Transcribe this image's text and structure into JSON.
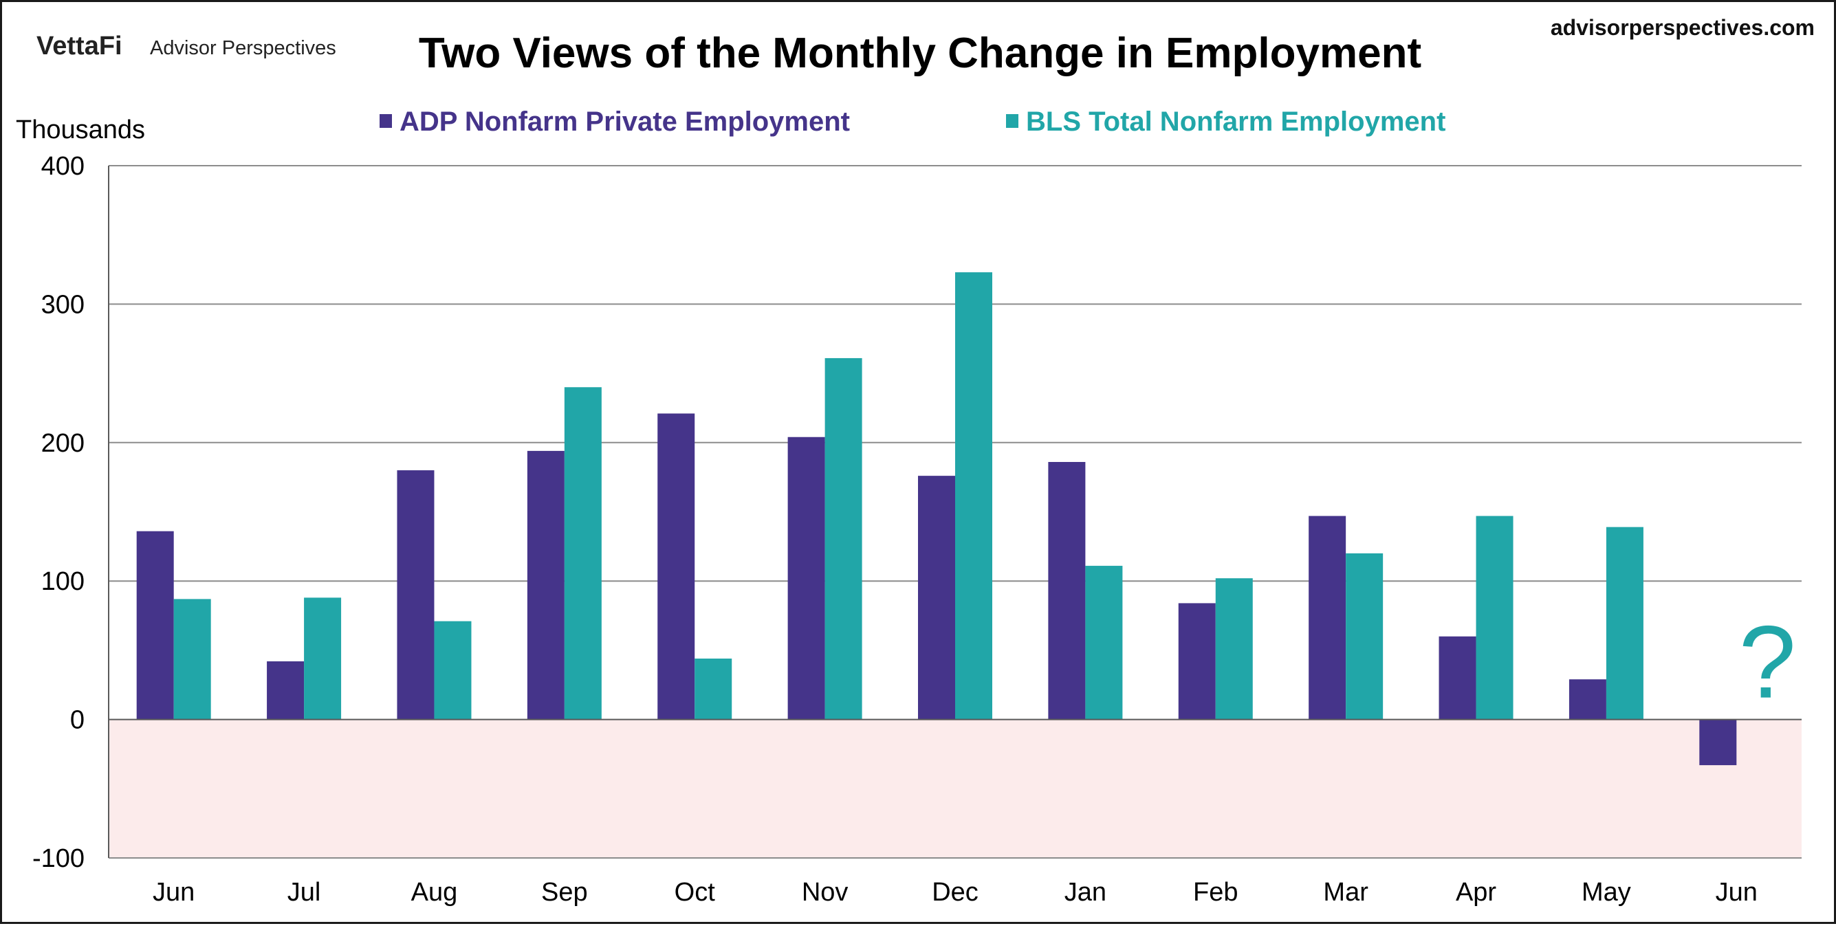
{
  "header": {
    "logo_text": "VettaFi",
    "brand_name": "Advisor Perspectives",
    "site_url": "advisorperspectives.com"
  },
  "colors": {
    "adp": "#45348a",
    "bls": "#21a6a8",
    "gridline": "#8c8c8c",
    "axis": "#595959",
    "negative_zone": "#fcebeb"
  },
  "chart_data": {
    "type": "bar",
    "title": "Two Views of the Monthly Change in Employment",
    "ylabel": "Thousands",
    "xlabel": "",
    "ylim": [
      -100,
      400
    ],
    "yticks": [
      400,
      300,
      200,
      100,
      0,
      -100
    ],
    "grid": true,
    "legend_position": "top",
    "categories": [
      "Jun",
      "Jul",
      "Aug",
      "Sep",
      "Oct",
      "Nov",
      "Dec",
      "Jan",
      "Feb",
      "Mar",
      "Apr",
      "May",
      "Jun"
    ],
    "series": [
      {
        "name": "ADP Nonfarm Private Employment",
        "color_key": "adp",
        "values": [
          136,
          42,
          180,
          194,
          221,
          204,
          176,
          186,
          84,
          147,
          60,
          29,
          -33
        ]
      },
      {
        "name": "BLS Total Nonfarm Employment",
        "color_key": "bls",
        "values": [
          87,
          88,
          71,
          240,
          44,
          261,
          323,
          111,
          102,
          120,
          147,
          139,
          null
        ]
      }
    ],
    "annotation": {
      "text": "?",
      "category_index": 12,
      "series_index": 1
    }
  }
}
